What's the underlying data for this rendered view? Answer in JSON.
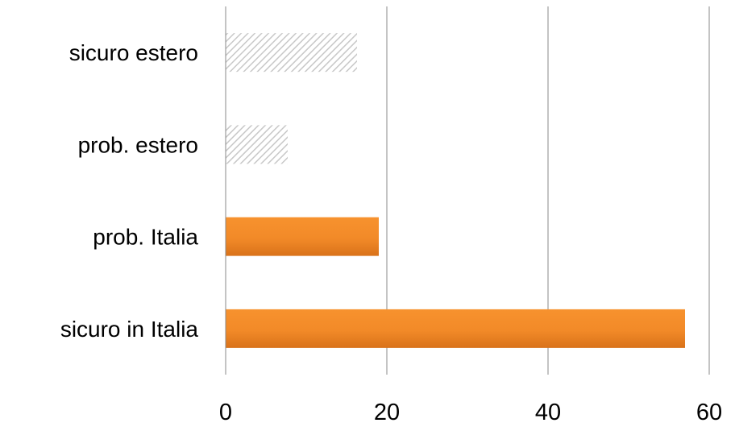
{
  "chart_data": {
    "type": "bar",
    "orientation": "horizontal",
    "categories": [
      "sicuro in Italia",
      "prob. Italia",
      "prob. estero",
      "sicuro estero"
    ],
    "values": [
      57,
      19,
      7.7,
      16.3
    ],
    "bar_styles": [
      "solid",
      "solid",
      "hatched",
      "hatched"
    ],
    "xlim": [
      0,
      60
    ],
    "xticks": [
      0,
      20,
      40,
      60
    ],
    "title": "",
    "xlabel": "",
    "ylabel": "",
    "grid": "vertical",
    "legend": "none",
    "colors": {
      "solid_bar": "#f7922e",
      "solid_bar_dark": "#d9721a",
      "hatch_line": "#c8c8c8",
      "hatch_bg": "#ffffff",
      "grid": "#888888",
      "axis": "#888888"
    }
  }
}
